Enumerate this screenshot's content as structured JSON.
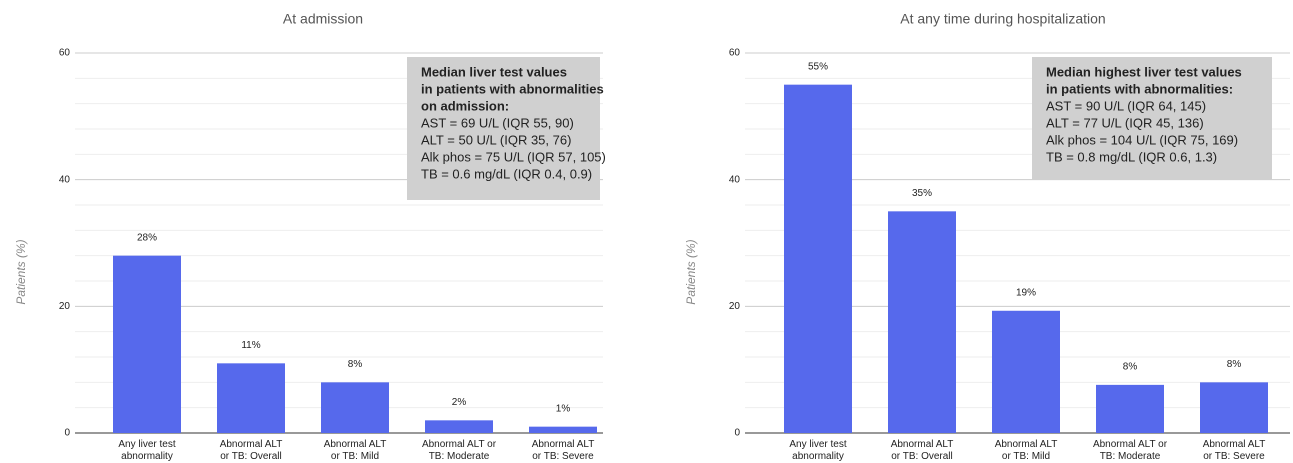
{
  "chart_data": [
    {
      "type": "bar",
      "title": "At admission",
      "y_label": "Patients (%)",
      "categories": [
        "Any liver test\nabnormality",
        "Abnormal ALT\nor TB: Overall",
        "Abnormal ALT\nor TB: Mild",
        "Abnormal ALT or\nTB: Moderate",
        "Abnormal ALT\nor TB: Severe"
      ],
      "values": [
        28,
        11,
        8,
        2,
        1
      ],
      "value_labels": [
        "28%",
        "11%",
        "8%",
        "2%",
        "1%"
      ],
      "color": "#5669ec",
      "ylim": [
        0,
        60
      ],
      "yticks": [
        0,
        20,
        40,
        60
      ],
      "grid": true,
      "annotation": {
        "heading": [
          "Median liver test values",
          "in patients with abnormalities",
          "on admission:"
        ],
        "lines": [
          "AST = 69 U/L (IQR 55, 90)",
          "ALT = 50 U/L (IQR 35, 76)",
          "Alk phos = 75 U/L (IQR 57, 105)",
          "TB = 0.6 mg/dL (IQR 0.4, 0.9)"
        ]
      }
    },
    {
      "type": "bar",
      "title": "At any time during hospitalization",
      "y_label": "Patients (%)",
      "categories": [
        "Any liver test\nabnormality",
        "Abnormal ALT\nor TB: Overall",
        "Abnormal ALT\nor TB: Mild",
        "Abnormal ALT or\nTB: Moderate",
        "Abnormal ALT\nor TB: Severe"
      ],
      "values": [
        55,
        35,
        19.3,
        7.6,
        8
      ],
      "value_labels": [
        "55%",
        "35%",
        "19%",
        "8%",
        "8%"
      ],
      "color": "#5669ec",
      "ylim": [
        0,
        60
      ],
      "yticks": [
        0,
        20,
        40,
        60
      ],
      "grid": true,
      "annotation": {
        "heading": [
          "Median highest liver test values",
          "in patients with abnormalities:"
        ],
        "lines": [
          "AST = 90 U/L (IQR 64, 145)",
          "ALT = 77 U/L (IQR 45, 136)",
          "Alk phos = 104 U/L (IQR 75, 169)",
          "TB = 0.8 mg/dL (IQR 0.6, 1.3)"
        ]
      }
    }
  ]
}
